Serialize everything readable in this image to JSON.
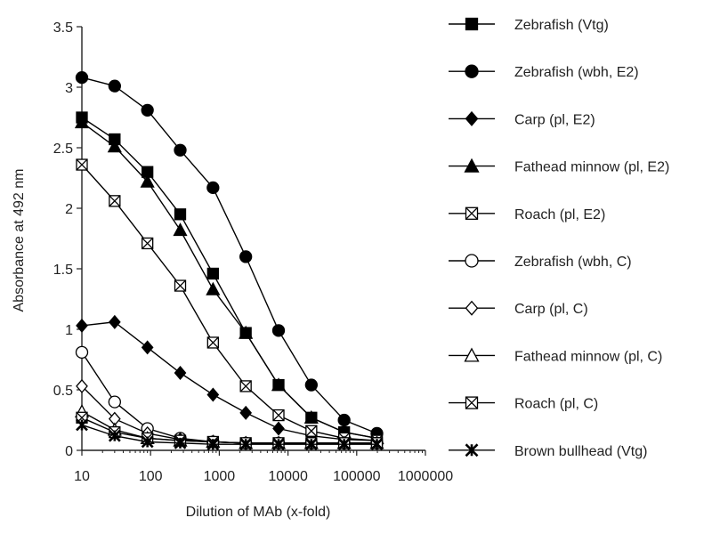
{
  "chart_data": {
    "type": "line",
    "title": "",
    "xlabel": "Dilution of MAb (x-fold)",
    "ylabel": "Absorbance at 492 nm",
    "x_scale": "log",
    "xlim": [
      10,
      1000000
    ],
    "ylim": [
      0,
      3.5
    ],
    "x_ticks": [
      10,
      100,
      1000,
      10000,
      100000,
      1000000
    ],
    "x_tick_labels": [
      "10",
      "100",
      "1000",
      "10000",
      "100000",
      "1000000"
    ],
    "y_ticks": [
      0,
      0.5,
      1,
      1.5,
      2,
      2.5,
      3,
      3.5
    ],
    "y_tick_labels": [
      "0",
      "0.5",
      "1",
      "1.5",
      "2",
      "2.5",
      "3",
      "3.5"
    ],
    "grid": false,
    "legend_position": "right",
    "x": [
      10,
      30,
      90,
      270,
      810,
      2430,
      7290,
      21870,
      65610,
      196830
    ],
    "series": [
      {
        "name": "Zebrafish (Vtg)",
        "marker": "filled-square",
        "values": [
          2.75,
          2.57,
          2.3,
          1.95,
          1.46,
          0.97,
          0.54,
          0.27,
          0.15,
          0.1
        ]
      },
      {
        "name": "Zebrafish (wbh, E2)",
        "marker": "filled-circle",
        "values": [
          3.08,
          3.01,
          2.81,
          2.48,
          2.17,
          1.6,
          0.99,
          0.54,
          0.25,
          0.14
        ]
      },
      {
        "name": "Carp (pl, E2)",
        "marker": "filled-diamond",
        "values": [
          1.03,
          1.06,
          0.85,
          0.64,
          0.46,
          0.31,
          0.18,
          0.12,
          0.09,
          0.08
        ]
      },
      {
        "name": "Fathead minnow (pl, E2)",
        "marker": "filled-triangle",
        "values": [
          2.71,
          2.51,
          2.22,
          1.82,
          1.33,
          0.97,
          0.54,
          0.27,
          0.15,
          0.1
        ]
      },
      {
        "name": "Roach (pl, E2)",
        "marker": "crossed-square",
        "values": [
          2.36,
          2.06,
          1.71,
          1.36,
          0.89,
          0.53,
          0.29,
          0.16,
          0.1,
          0.08
        ]
      },
      {
        "name": "Zebrafish (wbh, C)",
        "marker": "open-circle",
        "values": [
          0.81,
          0.4,
          0.18,
          0.1,
          0.07,
          0.06,
          0.06,
          0.06,
          0.06,
          0.06
        ]
      },
      {
        "name": "Carp (pl, C)",
        "marker": "open-diamond",
        "values": [
          0.53,
          0.26,
          0.14,
          0.09,
          0.07,
          0.06,
          0.06,
          0.06,
          0.06,
          0.06
        ]
      },
      {
        "name": "Fathead minnow (pl, C)",
        "marker": "open-triangle",
        "values": [
          0.32,
          0.17,
          0.1,
          0.08,
          0.07,
          0.06,
          0.06,
          0.06,
          0.06,
          0.06
        ]
      },
      {
        "name": "Roach (pl, C)",
        "marker": "crossed-square",
        "values": [
          0.27,
          0.15,
          0.1,
          0.08,
          0.07,
          0.06,
          0.06,
          0.06,
          0.06,
          0.06
        ]
      },
      {
        "name": "Brown bullhead (Vtg)",
        "marker": "asterisk",
        "values": [
          0.21,
          0.12,
          0.07,
          0.06,
          0.05,
          0.05,
          0.05,
          0.05,
          0.05,
          0.05
        ]
      }
    ]
  }
}
